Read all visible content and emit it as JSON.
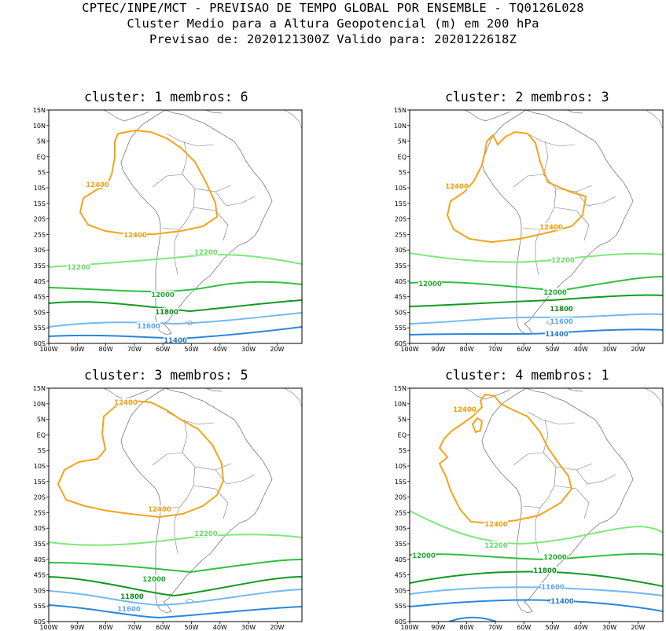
{
  "header": {
    "line1": "CPTEC/INPE/MCT - PREVISAO DE TEMPO GLOBAL POR ENSEMBLE - TQ0126L028",
    "line2": "Cluster Medio para a Altura Geopotencial (m) em 200 hPa",
    "line3": "Previsao de: 2020121300Z   Valido para: 2020122618Z"
  },
  "axes": {
    "lat_ticks": [
      "15N",
      "10N",
      "5N",
      "EQ",
      "5S",
      "10S",
      "15S",
      "20S",
      "25S",
      "30S",
      "35S",
      "40S",
      "45S",
      "50S",
      "55S",
      "60S"
    ],
    "lon_ticks": [
      "100W",
      "90W",
      "80W",
      "70W",
      "60W",
      "50W",
      "40W",
      "30W",
      "20W"
    ]
  },
  "colors": {
    "c12400": "#f5a31a",
    "c12200": "#7de87a",
    "c12000": "#2fc040",
    "c11800": "#109a20",
    "c11600": "#74b8f2",
    "c11400": "#2a86dc",
    "coast": "#7a7a7a"
  },
  "panels": [
    {
      "title": "cluster: 1   membros: 6",
      "labels": {
        "c12400a": "12400",
        "c12400b": "12400",
        "c12200": "12200",
        "c12200b": "12200",
        "c12000": "12000",
        "c11800": "11800",
        "c11600": "11600",
        "c11400": "11400"
      }
    },
    {
      "title": "cluster: 2   membros: 3",
      "labels": {
        "c12400a": "12400",
        "c12400b": "12400",
        "c12200": "12200",
        "c12000": "12000",
        "c12000b": "12000",
        "c11800": "11800",
        "c11600": "11600",
        "c11400": "11400"
      }
    },
    {
      "title": "cluster: 3   membros: 5",
      "labels": {
        "c12400a": "12400",
        "c12400b": "12400",
        "c12200": "12200",
        "c12000": "12000",
        "c11800": "11800",
        "c11600": "11600"
      }
    },
    {
      "title": "cluster: 4   membros: 1",
      "labels": {
        "c12400a": "12400",
        "c12400b": "12400",
        "c12200": "12200",
        "c12000": "12000",
        "c12000b": "12000",
        "c11800": "11800",
        "c11600": "11600",
        "c11400": "11400"
      }
    }
  ]
}
